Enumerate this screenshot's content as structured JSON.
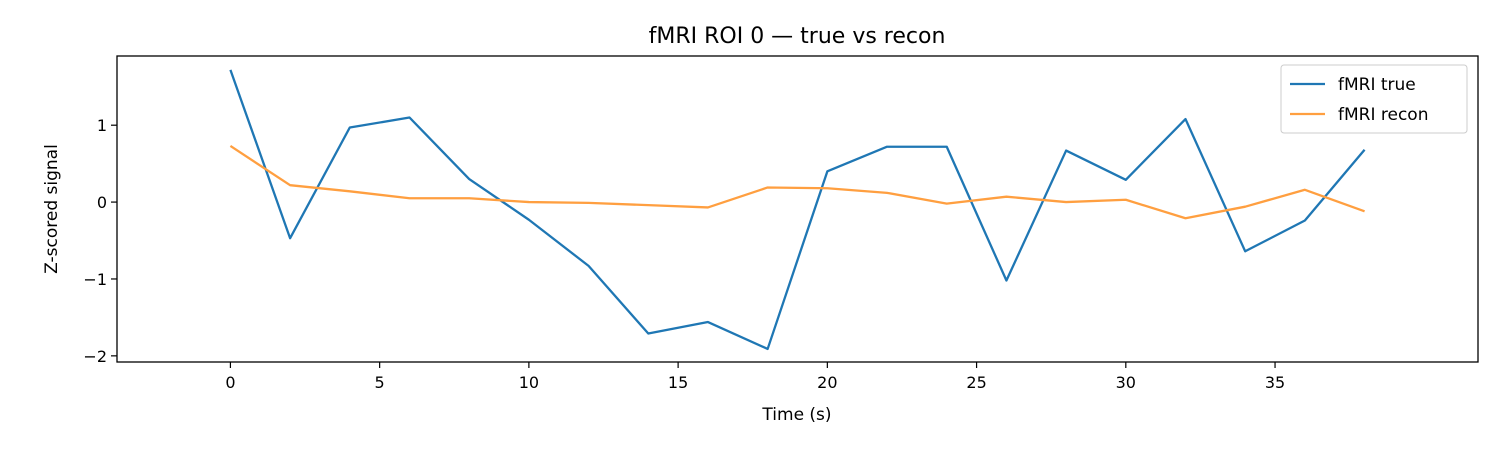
{
  "chart_data": {
    "type": "line",
    "title": "fMRI ROI 0 — true vs recon",
    "xlabel": "Time (s)",
    "ylabel": "Z-scored signal",
    "xlim": [
      -3.8,
      41.8
    ],
    "ylim": [
      -2.08,
      1.9
    ],
    "xticks": [
      0,
      5,
      10,
      15,
      20,
      25,
      30,
      35
    ],
    "xtick_labels": [
      "0",
      "5",
      "10",
      "15",
      "20",
      "25",
      "30",
      "35"
    ],
    "yticks": [
      -2,
      -1,
      0,
      1
    ],
    "ytick_labels": [
      "−2",
      "−1",
      "0",
      "1"
    ],
    "grid": false,
    "legend_position": "top-right",
    "x": [
      0,
      2,
      4,
      6,
      8,
      10,
      12,
      14,
      16,
      18,
      20,
      22,
      24,
      26,
      28,
      30,
      32,
      34,
      36,
      38
    ],
    "series": [
      {
        "name": "fMRI true",
        "color": "#1f77b4",
        "values": [
          1.72,
          -0.47,
          0.97,
          1.1,
          0.3,
          -0.23,
          -0.83,
          -1.71,
          -1.56,
          -1.91,
          0.4,
          0.72,
          0.72,
          -1.02,
          0.67,
          0.29,
          1.08,
          -0.64,
          -0.24,
          0.68
        ]
      },
      {
        "name": "fMRI recon",
        "color": "#ff9f40",
        "values": [
          0.73,
          0.22,
          0.14,
          0.05,
          0.05,
          0.0,
          -0.01,
          -0.04,
          -0.07,
          0.19,
          0.18,
          0.12,
          -0.02,
          0.07,
          0.0,
          0.03,
          -0.21,
          -0.06,
          0.16,
          -0.12
        ]
      }
    ]
  }
}
